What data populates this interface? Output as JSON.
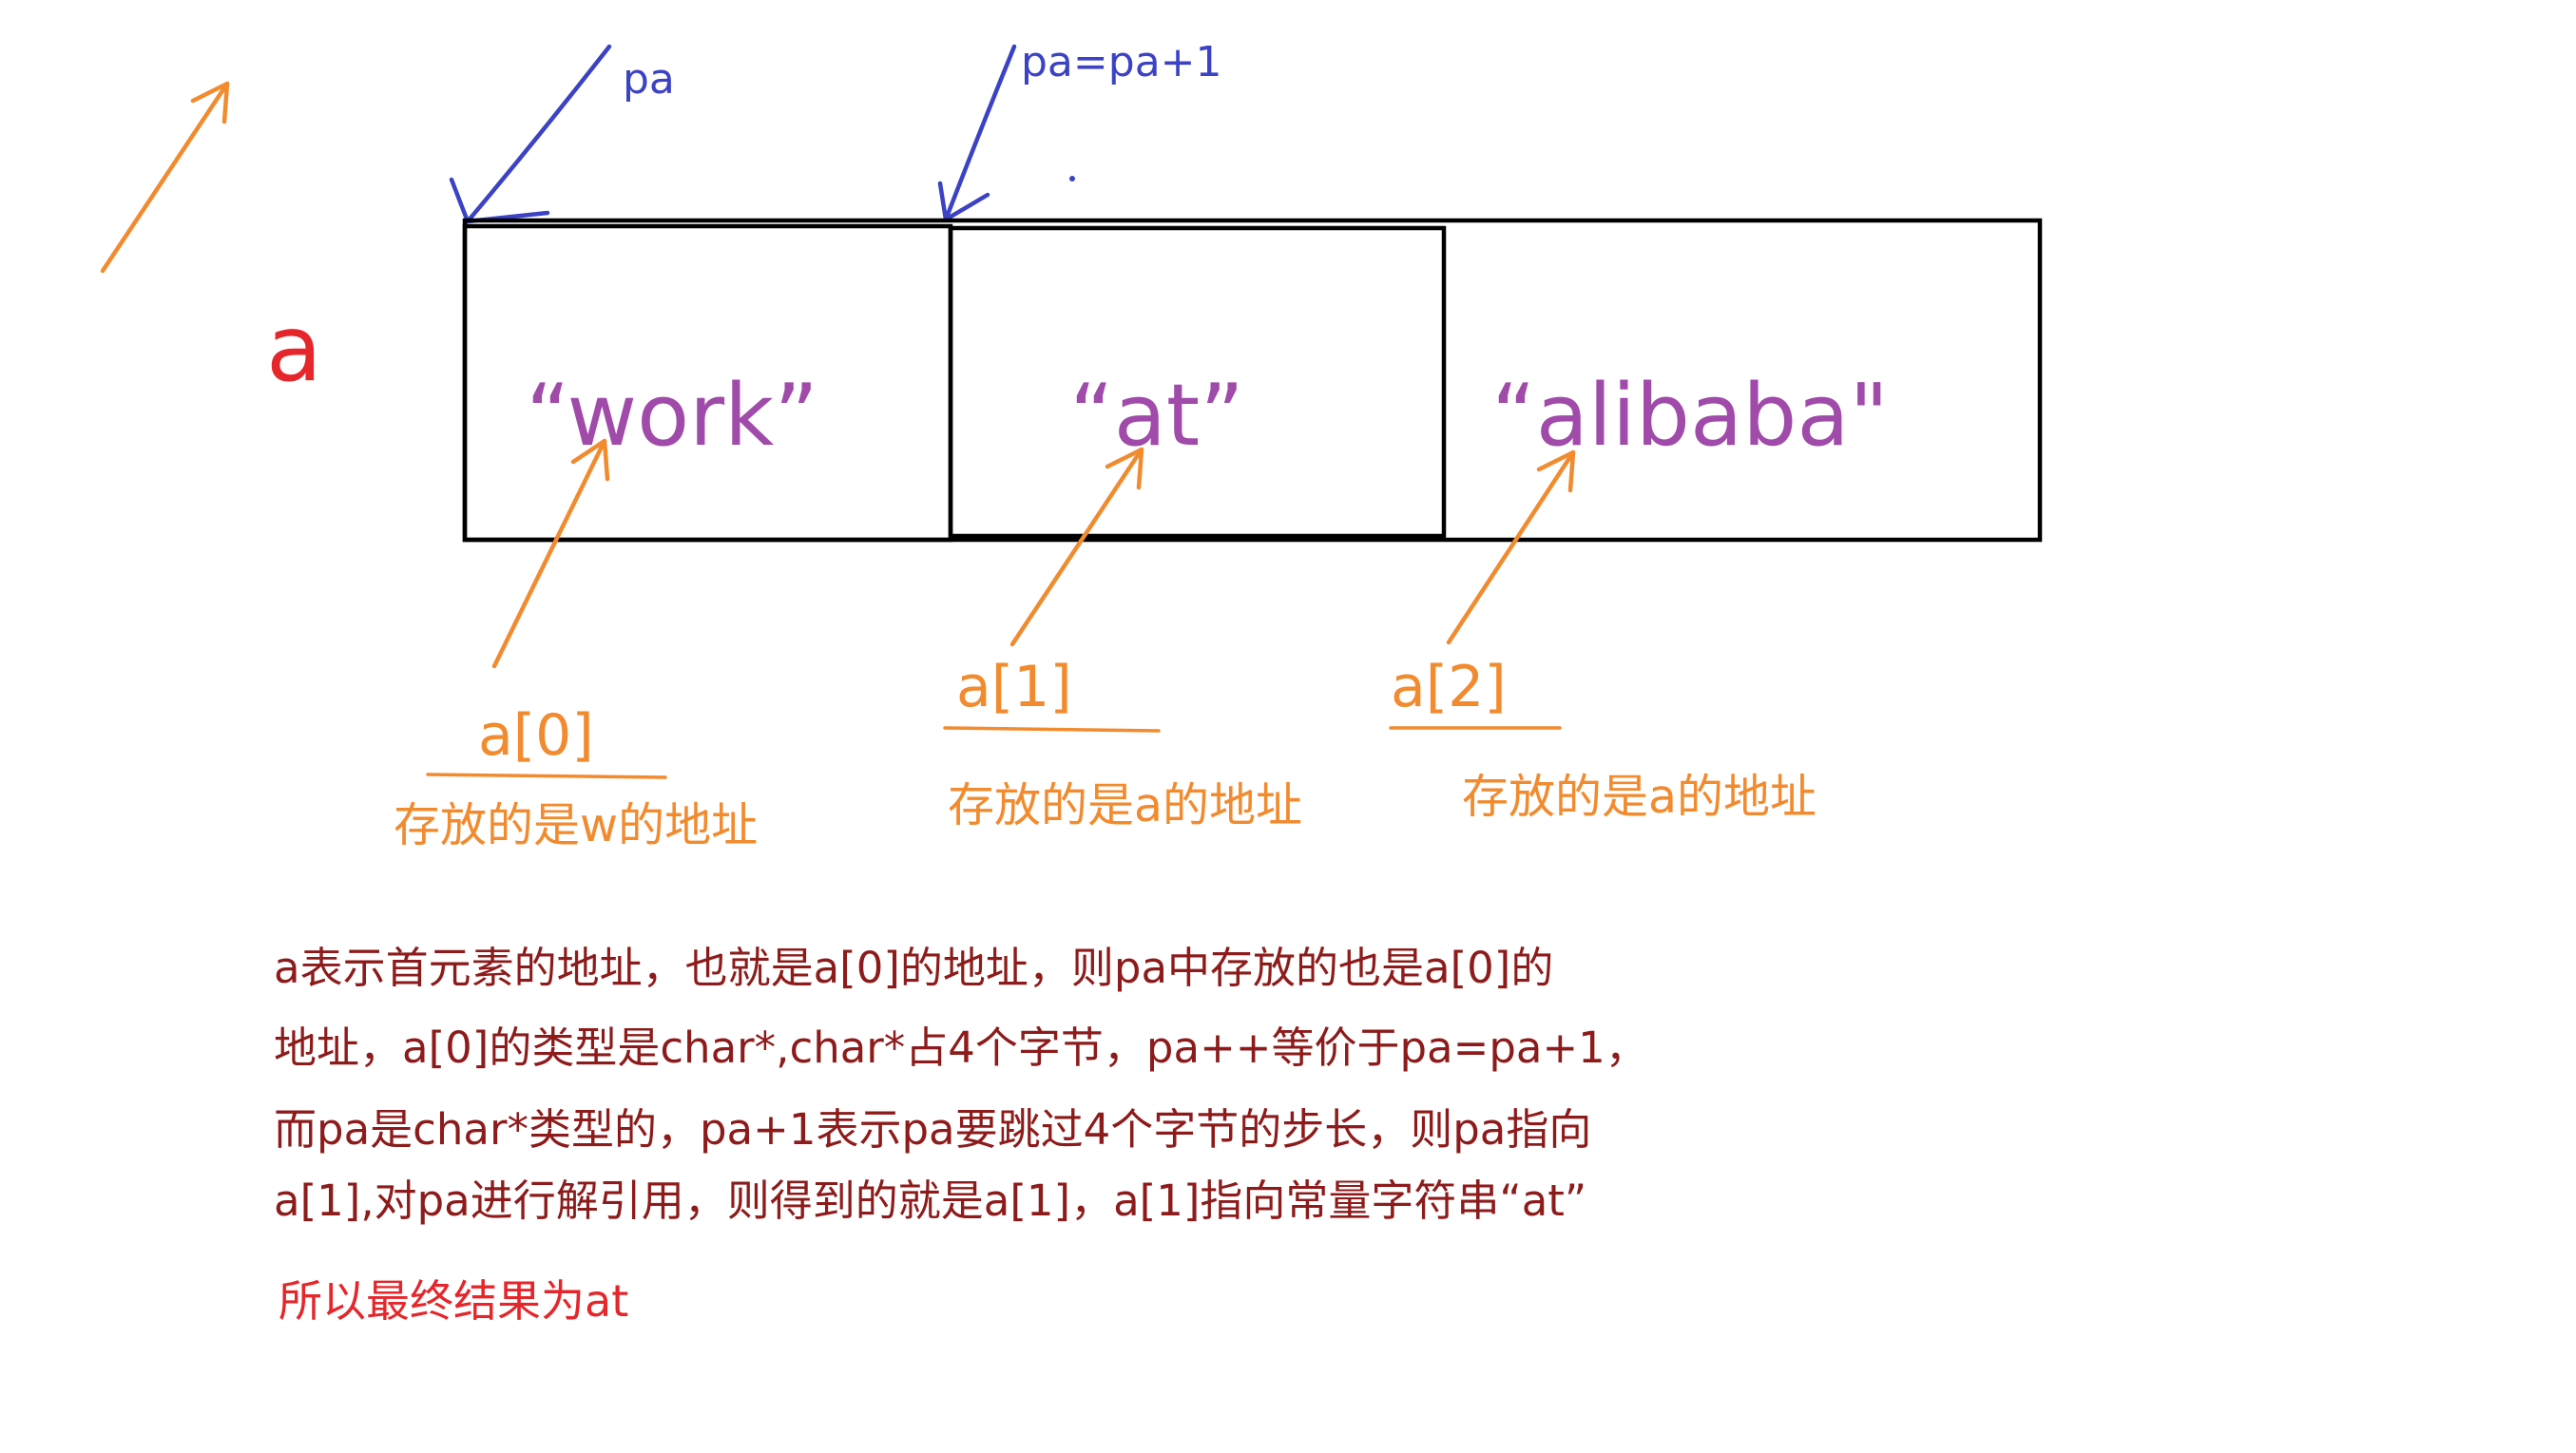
{
  "colors": {
    "orange": "#f28a2e",
    "blue": "#3b42c4",
    "purple": "#a04aaa",
    "red": "#e5262b",
    "dark_red": "#8e1b1b",
    "box_stroke": "#000000"
  },
  "pointers": {
    "pa_label": "pa",
    "pa_plus_label": "pa=pa+1"
  },
  "array": {
    "name": "a",
    "cells": [
      "“work”",
      "“at”",
      "“alibaba\""
    ]
  },
  "elements": [
    {
      "index_label": "a[0]",
      "note": "存放的是w的地址"
    },
    {
      "index_label": "a[1]",
      "note": "存放的是a的地址"
    },
    {
      "index_label": "a[2]",
      "note": "存放的是a的地址"
    }
  ],
  "explanation": {
    "lines": [
      "a表示首元素的地址，也就是a[0]的地址，则pa中存放的也是a[0]的",
      "地址，a[0]的类型是char*,char*占4个字节，pa++等价于pa=pa+1，",
      "而pa是char*类型的，pa+1表示pa要跳过4个字节的步长，则pa指向",
      "a[1],对pa进行解引用，则得到的就是a[1]，a[1]指向常量字符串“at”"
    ]
  },
  "conclusion": "所以最终结果为at"
}
